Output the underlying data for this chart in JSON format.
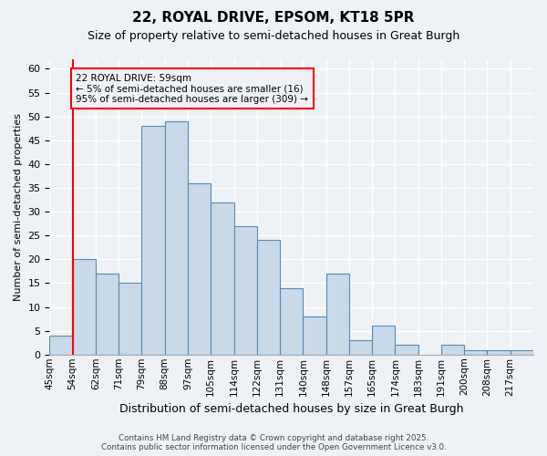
{
  "title1": "22, ROYAL DRIVE, EPSOM, KT18 5PR",
  "title2": "Size of property relative to semi-detached houses in Great Burgh",
  "xlabel": "Distribution of semi-detached houses by size in Great Burgh",
  "ylabel": "Number of semi-detached properties",
  "bin_labels": [
    "45sqm",
    "54sqm",
    "62sqm",
    "71sqm",
    "79sqm",
    "88sqm",
    "97sqm",
    "105sqm",
    "114sqm",
    "122sqm",
    "131sqm",
    "140sqm",
    "148sqm",
    "157sqm",
    "165sqm",
    "174sqm",
    "183sqm",
    "191sqm",
    "200sqm",
    "208sqm",
    "217sqm"
  ],
  "bar_values": [
    4,
    20,
    17,
    15,
    48,
    49,
    36,
    32,
    27,
    24,
    14,
    8,
    17,
    3,
    6,
    2,
    0,
    2,
    1,
    1,
    1
  ],
  "bar_color": "#c8d9ea",
  "bar_edge_color": "#5a8ab0",
  "ylim": [
    0,
    62
  ],
  "yticks": [
    0,
    5,
    10,
    15,
    20,
    25,
    30,
    35,
    40,
    45,
    50,
    55,
    60
  ],
  "property_line_x": 1,
  "annotation_title": "22 ROYAL DRIVE: 59sqm",
  "annotation_line1": "← 5% of semi-detached houses are smaller (16)",
  "annotation_line2": "95% of semi-detached houses are larger (309) →",
  "footer1": "Contains HM Land Registry data © Crown copyright and database right 2025.",
  "footer2": "Contains public sector information licensed under the Open Government Licence v3.0.",
  "background_color": "#eef2f7",
  "grid_color": "#ffffff"
}
